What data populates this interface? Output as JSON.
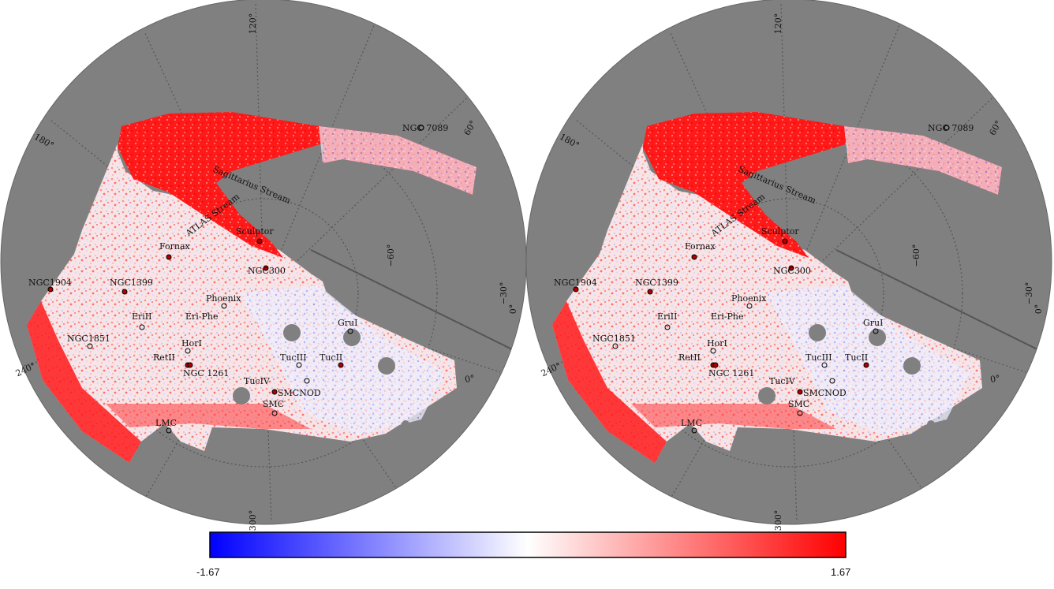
{
  "colors": {
    "background_sky": "#808080",
    "grid_line": "#555555",
    "footprint_high": "#ff0000",
    "footprint_mid": "#ffffff",
    "footprint_low": "#0000ff",
    "marker_ring": "#000000"
  },
  "panels": [
    {
      "name": "left",
      "objects": [
        {
          "label": "NGC 7089"
        },
        {
          "label": "Sagittarius Stream"
        },
        {
          "label": "ATLAS Stream"
        },
        {
          "label": "Sculptor"
        },
        {
          "label": "Fornax"
        },
        {
          "label": "NGC300"
        },
        {
          "label": "NGC1904"
        },
        {
          "label": "NGC1399"
        },
        {
          "label": "Phoenix"
        },
        {
          "label": "EriII"
        },
        {
          "label": "Eri-Phe"
        },
        {
          "label": "GruI"
        },
        {
          "label": "NGC1851"
        },
        {
          "label": "HorI"
        },
        {
          "label": "RetII"
        },
        {
          "label": "NGC 1261"
        },
        {
          "label": "TucIII"
        },
        {
          "label": "TucII"
        },
        {
          "label": "TucIV"
        },
        {
          "label": "SMCNOD"
        },
        {
          "label": "SMC"
        },
        {
          "label": "LMC"
        }
      ],
      "tick_labels": [
        "120°",
        "60°",
        "180°",
        "−30°",
        "−60°",
        "0°",
        "0°",
        "240°",
        "300°"
      ]
    },
    {
      "name": "right",
      "objects": [
        {
          "label": "NGC 7089"
        },
        {
          "label": "Sagittarius Stream"
        },
        {
          "label": "ATLAS Stream"
        },
        {
          "label": "Sculptor"
        },
        {
          "label": "Fornax"
        },
        {
          "label": "NGC300"
        },
        {
          "label": "NGC1904"
        },
        {
          "label": "NGC1399"
        },
        {
          "label": "Phoenix"
        },
        {
          "label": "EriII"
        },
        {
          "label": "Eri-Phe"
        },
        {
          "label": "GruI"
        },
        {
          "label": "NGC1851"
        },
        {
          "label": "HorI"
        },
        {
          "label": "RetII"
        },
        {
          "label": "NGC 1261"
        },
        {
          "label": "TucIII"
        },
        {
          "label": "TucII"
        },
        {
          "label": "TucIV"
        },
        {
          "label": "SMCNOD"
        },
        {
          "label": "SMC"
        },
        {
          "label": "LMC"
        }
      ],
      "tick_labels": [
        "120°",
        "60°",
        "180°",
        "−30°",
        "−60°",
        "0°",
        "0°",
        "240°",
        "300°"
      ]
    }
  ],
  "colorbar": {
    "min": -1.67,
    "max": 1.67,
    "min_label": "-1.67",
    "max_label": "1.67",
    "colormap": [
      "#0000ff",
      "#ffffff",
      "#ff0000"
    ]
  }
}
